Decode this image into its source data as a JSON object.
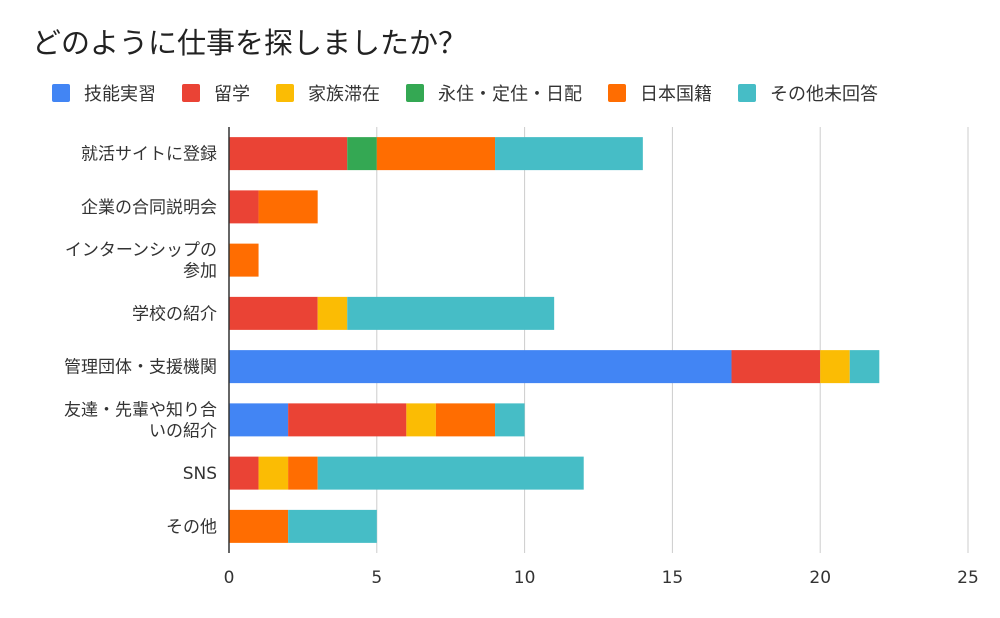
{
  "chart_data": {
    "type": "bar",
    "orientation": "horizontal",
    "stacked": true,
    "title": "どのように仕事を探しましたか？",
    "categories": [
      [
        "就活サイトに登録"
      ],
      [
        "企業の合同説明会"
      ],
      [
        "インターンシップの",
        "参加"
      ],
      [
        "学校の紹介"
      ],
      [
        "管理団体・支援機関"
      ],
      [
        "友達・先輩や知り合",
        "いの紹介"
      ],
      [
        "SNS"
      ],
      [
        "その他"
      ]
    ],
    "series": [
      {
        "name": "技能実習",
        "color": "#4285f4",
        "values": [
          0,
          0,
          0,
          0,
          17,
          2,
          0,
          0
        ]
      },
      {
        "name": "留学",
        "color": "#ea4335",
        "values": [
          4,
          1,
          0,
          3,
          3,
          4,
          1,
          0
        ]
      },
      {
        "name": "家族滞在",
        "color": "#fbbc04",
        "values": [
          0,
          0,
          0,
          1,
          1,
          1,
          1,
          0
        ]
      },
      {
        "name": "永住・定住・日配",
        "color": "#34a853",
        "values": [
          1,
          0,
          0,
          0,
          0,
          0,
          0,
          0
        ]
      },
      {
        "name": "日本国籍",
        "color": "#ff6d01",
        "values": [
          4,
          2,
          1,
          0,
          0,
          2,
          1,
          2
        ]
      },
      {
        "name": "その他未回答",
        "color": "#46bdc6",
        "values": [
          5,
          0,
          0,
          7,
          1,
          1,
          9,
          3
        ]
      }
    ],
    "xlim": [
      0,
      25
    ],
    "xticks": [
      0,
      5,
      10,
      15,
      20,
      25
    ],
    "grid": true,
    "legend_position": "top"
  }
}
